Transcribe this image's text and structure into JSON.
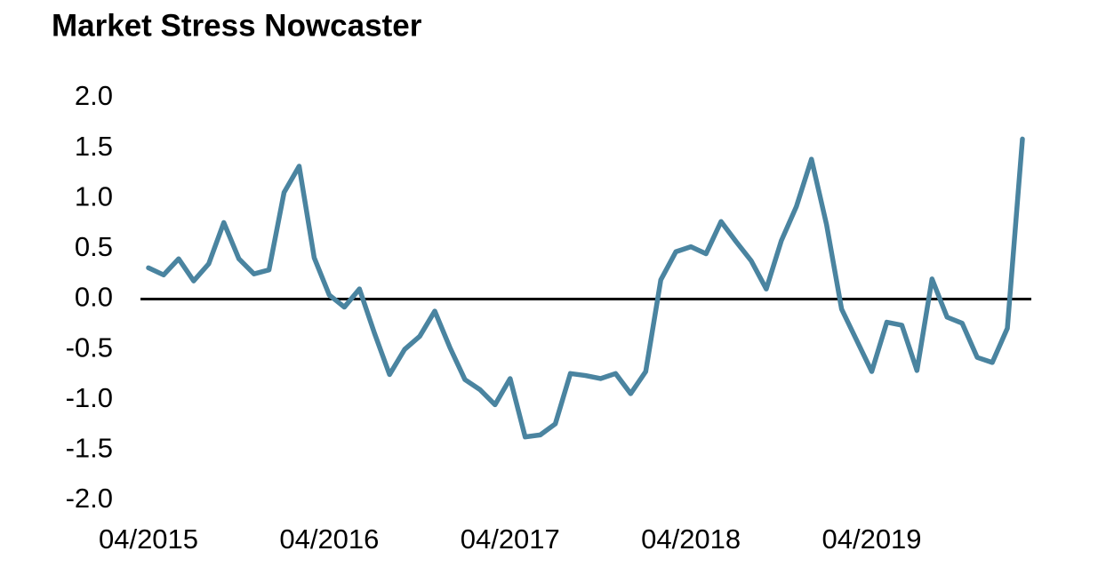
{
  "chart_data": {
    "type": "line",
    "title": "Market Stress Nowcaster",
    "categories": [
      "04/2015",
      null,
      null,
      null,
      null,
      null,
      null,
      null,
      null,
      null,
      null,
      null,
      "04/2016",
      null,
      null,
      null,
      null,
      null,
      null,
      null,
      null,
      null,
      null,
      null,
      "04/2017",
      null,
      null,
      null,
      null,
      null,
      null,
      null,
      null,
      null,
      null,
      null,
      "04/2018",
      null,
      null,
      null,
      null,
      null,
      null,
      null,
      null,
      null,
      null,
      null,
      "04/2019",
      null,
      null,
      null,
      null,
      null,
      null,
      null,
      null,
      null,
      null
    ],
    "values": [
      0.31,
      0.24,
      0.4,
      0.18,
      0.35,
      0.76,
      0.4,
      0.25,
      0.29,
      1.06,
      1.32,
      0.41,
      0.04,
      -0.08,
      0.1,
      -0.34,
      -0.75,
      -0.5,
      -0.37,
      -0.12,
      -0.48,
      -0.8,
      -0.9,
      -1.05,
      -0.79,
      -1.37,
      -1.35,
      -1.24,
      -0.74,
      -0.76,
      -0.79,
      -0.74,
      -0.94,
      -0.72,
      0.19,
      0.47,
      0.52,
      0.45,
      0.77,
      0.57,
      0.38,
      0.1,
      0.58,
      0.92,
      1.39,
      0.74,
      -0.1,
      -0.41,
      -0.72,
      -0.23,
      -0.26,
      -0.71,
      0.2,
      -0.18,
      -0.24,
      -0.58,
      -0.63,
      -0.29,
      1.59
    ],
    "color": "#4a84a0",
    "ylim": [
      -2,
      2
    ],
    "yticks": [
      {
        "value": 2,
        "label": "2.0"
      },
      {
        "value": 1.5,
        "label": "1.5"
      },
      {
        "value": 1,
        "label": "1.0"
      },
      {
        "value": 0.5,
        "label": "0.5"
      },
      {
        "value": 0,
        "label": "0.0"
      },
      {
        "value": -0.5,
        "label": "-0.5"
      },
      {
        "value": -1,
        "label": "-1.0"
      },
      {
        "value": -1.5,
        "label": "-1.5"
      },
      {
        "value": -2,
        "label": "-2.0"
      }
    ],
    "zero_line": true
  }
}
